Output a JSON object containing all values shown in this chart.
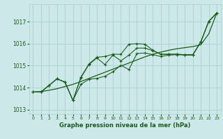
{
  "xlabel": "Graphe pression niveau de la mer (hPa)",
  "xlim": [
    -0.5,
    23.5
  ],
  "ylim": [
    1012.8,
    1017.8
  ],
  "yticks": [
    1013,
    1014,
    1015,
    1016,
    1017
  ],
  "xticks": [
    0,
    1,
    2,
    3,
    4,
    5,
    6,
    7,
    8,
    9,
    10,
    11,
    12,
    13,
    14,
    15,
    16,
    17,
    18,
    19,
    20,
    21,
    22,
    23
  ],
  "bg_color": "#cce8e8",
  "grid_color": "#aacfcf",
  "line_color": "#1a5c1a",
  "series_straight": [
    1013.8,
    1013.82,
    1013.88,
    1013.95,
    1014.05,
    1014.15,
    1014.28,
    1014.42,
    1014.56,
    1014.7,
    1014.84,
    1014.98,
    1015.12,
    1015.26,
    1015.4,
    1015.52,
    1015.62,
    1015.7,
    1015.77,
    1015.82,
    1015.87,
    1015.95,
    1016.45,
    1017.4
  ],
  "series_jagged1": [
    1013.8,
    1013.8,
    1014.1,
    1014.4,
    1014.25,
    1013.42,
    1014.15,
    1014.38,
    1014.42,
    1014.52,
    1014.72,
    1015.02,
    1014.82,
    1015.55,
    1015.58,
    1015.5,
    1015.42,
    1015.48,
    1015.5,
    1015.48,
    1015.48,
    1016.08,
    1017.02,
    1017.4
  ],
  "series_jagged2": [
    1013.8,
    1013.8,
    1014.1,
    1014.4,
    1014.25,
    1013.42,
    1014.45,
    1015.05,
    1015.35,
    1015.05,
    1015.48,
    1015.22,
    1015.48,
    1015.8,
    1015.8,
    1015.68,
    1015.52,
    1015.52,
    1015.52,
    1015.5,
    1015.5,
    1016.08,
    1017.02,
    1017.4
  ],
  "series_jagged3": [
    1013.8,
    1013.8,
    1014.1,
    1014.4,
    1014.25,
    1013.42,
    1014.48,
    1015.08,
    1015.38,
    1015.42,
    1015.52,
    1015.52,
    1015.98,
    1016.0,
    1015.98,
    1015.7,
    1015.52,
    1015.52,
    1015.52,
    1015.5,
    1015.5,
    1016.08,
    1017.02,
    1017.4
  ]
}
